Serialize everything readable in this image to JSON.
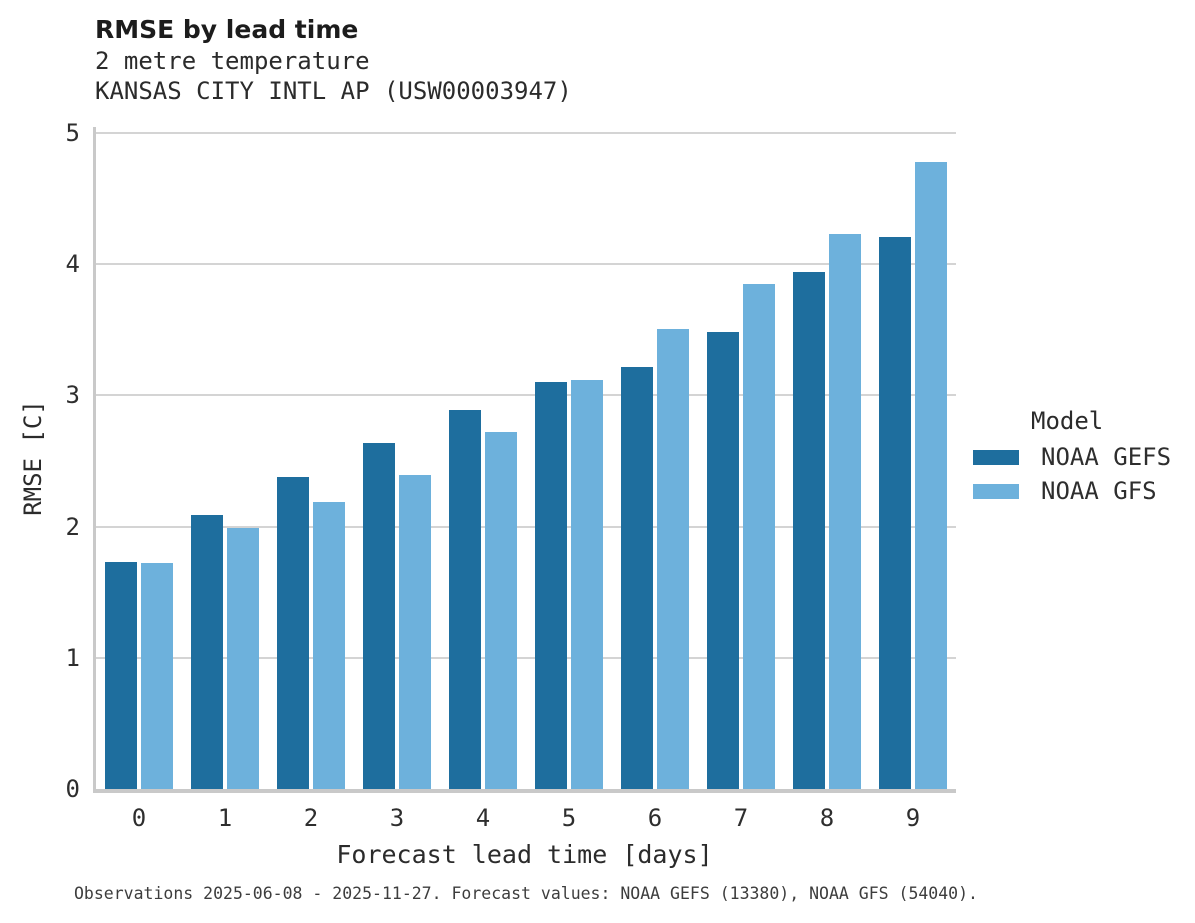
{
  "figure": {
    "footer": "Observations 2025-06-08 - 2025-11-27. Forecast values: NOAA GEFS (13380), NOAA GFS (54040)."
  },
  "chart_data": {
    "type": "bar",
    "title": "RMSE by lead time",
    "subtitle_lines": [
      "2 metre temperature",
      "KANSAS CITY INTL AP (USW00003947)"
    ],
    "categories": [
      "0",
      "1",
      "2",
      "3",
      "4",
      "5",
      "6",
      "7",
      "8",
      "9"
    ],
    "series": [
      {
        "name": "NOAA GEFS",
        "key": "noaa-gefs",
        "color": "#1e6e9e",
        "values": [
          1.73,
          2.09,
          2.38,
          2.64,
          2.89,
          3.1,
          3.22,
          3.48,
          3.94,
          4.21
        ]
      },
      {
        "name": "NOAA GFS",
        "key": "noaa-gfs",
        "color": "#6db1dc",
        "values": [
          1.72,
          1.99,
          2.19,
          2.39,
          2.72,
          3.12,
          3.51,
          3.85,
          4.23,
          4.78
        ]
      }
    ],
    "xlabel": "Forecast lead time [days]",
    "ylabel": "RMSE [C]",
    "ylim": [
      0,
      5
    ],
    "yticks": [
      0,
      1,
      2,
      3,
      4,
      5
    ],
    "grid": "horizontal",
    "legend": {
      "title": "Model",
      "position": "right"
    }
  },
  "colors": {
    "bar_gefs": "#1e6e9e",
    "bar_gfs": "#6db1dc",
    "gridline": "#d4d4d4",
    "spine": "#c9c9c9",
    "text": "#2b2b2b",
    "footer_text": "#3d3d3d",
    "background": "#ffffff"
  }
}
